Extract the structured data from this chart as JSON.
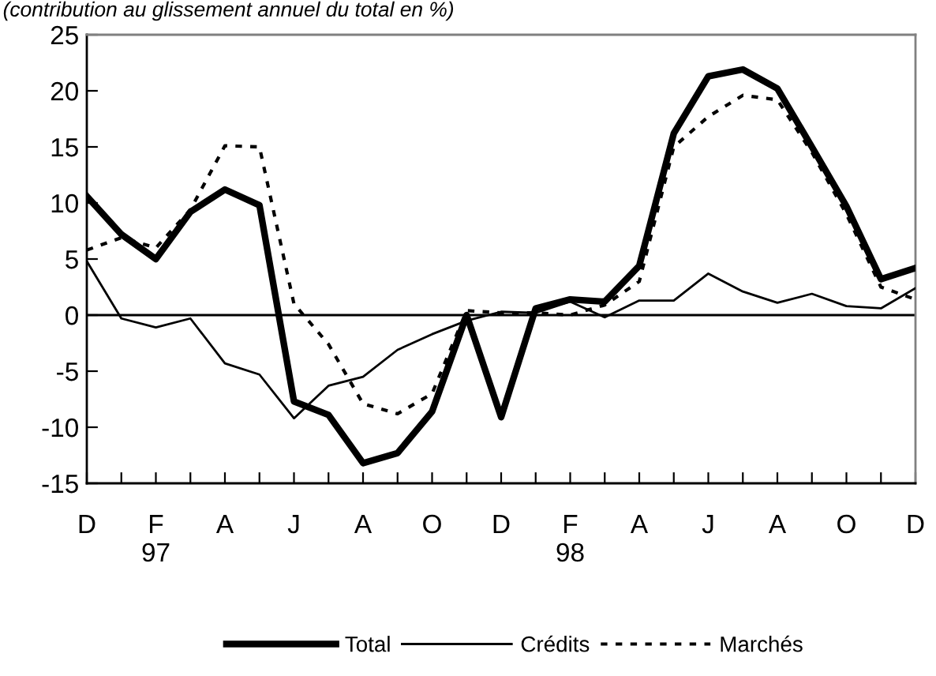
{
  "chart_data": {
    "type": "line",
    "title": "(contribution au glissement annuel du total en %)",
    "categories": [
      "D",
      null,
      "F\n97",
      null,
      "A",
      null,
      "J",
      null,
      "A",
      null,
      "O",
      null,
      "D",
      null,
      "F\n98",
      null,
      "A",
      null,
      "J",
      null,
      "A",
      null,
      "O",
      null,
      "D"
    ],
    "series": [
      {
        "name": "Total",
        "color": "#000000",
        "line_style": "solid",
        "values": [
          10.6,
          7.2,
          5.0,
          9.2,
          11.2,
          9.8,
          -7.7,
          -8.9,
          -13.2,
          -12.3,
          -8.6,
          0,
          -9.1,
          0.6,
          1.4,
          1.2,
          4.4,
          16.2,
          21.3,
          21.9,
          20.2,
          15.0,
          9.7,
          3.2,
          4.2
        ]
      },
      {
        "name": "Crédits",
        "color": "#000000",
        "line_style": "solid",
        "values": [
          4.8,
          -0.3,
          -1.1,
          -0.3,
          -4.3,
          -5.3,
          -9.2,
          -6.3,
          -5.5,
          -3.1,
          -1.7,
          -0.5,
          0.3,
          0.2,
          1.2,
          -0.2,
          1.3,
          1.3,
          3.7,
          2.1,
          1.1,
          1.9,
          0.8,
          0.6,
          2.4
        ]
      },
      {
        "name": "Marchés",
        "color": "#000000",
        "line_style": "dashed",
        "values": [
          5.8,
          6.9,
          6.0,
          9.4,
          15.1,
          15.0,
          1.0,
          -2.6,
          -7.9,
          -8.8,
          -7.0,
          0.4,
          0.2,
          0.2,
          0,
          0.9,
          3.0,
          15.0,
          17.7,
          19.6,
          19.2,
          14.5,
          9.0,
          2.5,
          1.4
        ]
      }
    ],
    "ylim": [
      -15,
      25
    ],
    "yticks": [
      -15,
      -10,
      -5,
      0,
      5,
      10,
      15,
      20,
      25
    ],
    "ref_lines": [
      {
        "axis": "y",
        "value": 0,
        "color": "#000000"
      }
    ],
    "grid": false,
    "legend": "bottom"
  }
}
